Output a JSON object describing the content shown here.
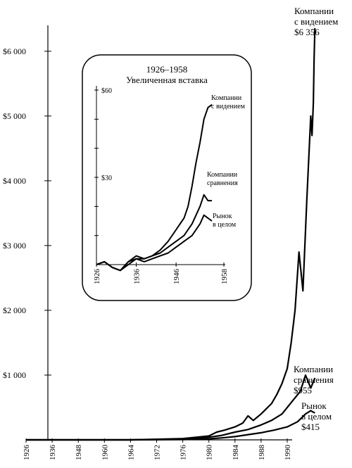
{
  "chart_data": [
    {
      "type": "line",
      "ylim": [
        0,
        6400
      ],
      "yticks": [
        {
          "value": 1000,
          "label": "$1 000"
        },
        {
          "value": 2000,
          "label": "$2 000"
        },
        {
          "value": 3000,
          "label": "$3 000"
        },
        {
          "value": 4000,
          "label": "$4 000"
        },
        {
          "value": 5000,
          "label": "$5 000"
        },
        {
          "value": 6000,
          "label": "$6 000"
        }
      ],
      "xticks": [
        "1926",
        "1936",
        "1948",
        "1960",
        "1964",
        "1972",
        "1976",
        "1980",
        "1984",
        "1988",
        "1990"
      ],
      "series": [
        {
          "name_lines": [
            "Компании",
            "с видением",
            "$6 356"
          ],
          "final_value": 6356,
          "x": [
            0,
            4,
            6,
            7,
            7.3,
            7.6,
            8.0,
            8.3,
            8.5,
            8.7,
            9.0,
            9.2,
            9.4,
            9.6,
            9.8,
            10.0,
            10.15,
            10.3,
            10.45,
            10.6,
            10.75,
            10.9,
            10.95,
            11.0,
            11.03,
            11.06
          ],
          "values": [
            0,
            0,
            20,
            60,
            120,
            150,
            200,
            260,
            370,
            300,
            400,
            480,
            560,
            700,
            870,
            1100,
            1500,
            2000,
            2900,
            2300,
            3700,
            5000,
            4700,
            5200,
            5900,
            6356
          ]
        },
        {
          "name_lines": [
            "Компании",
            "сравнения",
            "$955"
          ],
          "final_value": 955,
          "x": [
            0,
            4,
            6,
            7,
            7.5,
            8.0,
            8.5,
            9.0,
            9.4,
            9.8,
            10.2,
            10.5,
            10.7,
            10.9,
            11.06
          ],
          "values": [
            0,
            0,
            10,
            40,
            70,
            120,
            160,
            230,
            300,
            400,
            600,
            750,
            1000,
            800,
            955
          ]
        },
        {
          "name_lines": [
            "Рынок",
            "в целом",
            "$415"
          ],
          "final_value": 415,
          "x": [
            0,
            4,
            6,
            7,
            7.5,
            8.0,
            8.5,
            9.0,
            9.5,
            10.0,
            10.4,
            10.7,
            10.9,
            11.06
          ],
          "values": [
            0,
            0,
            5,
            15,
            30,
            50,
            80,
            110,
            150,
            200,
            280,
            400,
            450,
            415
          ]
        }
      ]
    },
    {
      "type": "line",
      "title_lines": [
        "1926–1958",
        "Увеличенная вставка"
      ],
      "ylim": [
        0,
        62
      ],
      "ytick_labels": [
        {
          "value": 30,
          "label": "$30"
        },
        {
          "value": 60,
          "label": "$60"
        }
      ],
      "xticks": [
        "1926",
        "1936",
        "1946",
        "1958"
      ],
      "xrange": [
        1926,
        1958
      ],
      "series": [
        {
          "name_lines": [
            "Компании",
            "с видением"
          ],
          "x": [
            1926,
            1928,
            1930,
            1932,
            1934,
            1936,
            1938,
            1940,
            1942,
            1944,
            1946,
            1948,
            1949,
            1950,
            1951,
            1952,
            1953,
            1954,
            1955
          ],
          "values": [
            0,
            1,
            -1,
            -2,
            1,
            3,
            2,
            3,
            5,
            8,
            12,
            16,
            20,
            27,
            35,
            42,
            50,
            54,
            55
          ]
        },
        {
          "name_lines": [
            "Компании",
            "сравнения"
          ],
          "x": [
            1926,
            1928,
            1930,
            1932,
            1934,
            1936,
            1938,
            1940,
            1942,
            1944,
            1946,
            1948,
            1950,
            1952,
            1953,
            1954,
            1955
          ],
          "values": [
            0,
            1,
            -1,
            -2,
            1,
            2,
            2,
            3,
            4,
            6,
            8,
            10,
            14,
            20,
            24,
            22,
            22
          ]
        },
        {
          "name_lines": [
            "Рынок",
            "в целом"
          ],
          "x": [
            1926,
            1928,
            1930,
            1932,
            1934,
            1936,
            1938,
            1940,
            1942,
            1944,
            1946,
            1948,
            1950,
            1952,
            1953,
            1954,
            1955
          ],
          "values": [
            0,
            1,
            -1,
            -2,
            0,
            2,
            1,
            2,
            3,
            4,
            6,
            8,
            10,
            14,
            17,
            16,
            15
          ]
        }
      ]
    }
  ]
}
